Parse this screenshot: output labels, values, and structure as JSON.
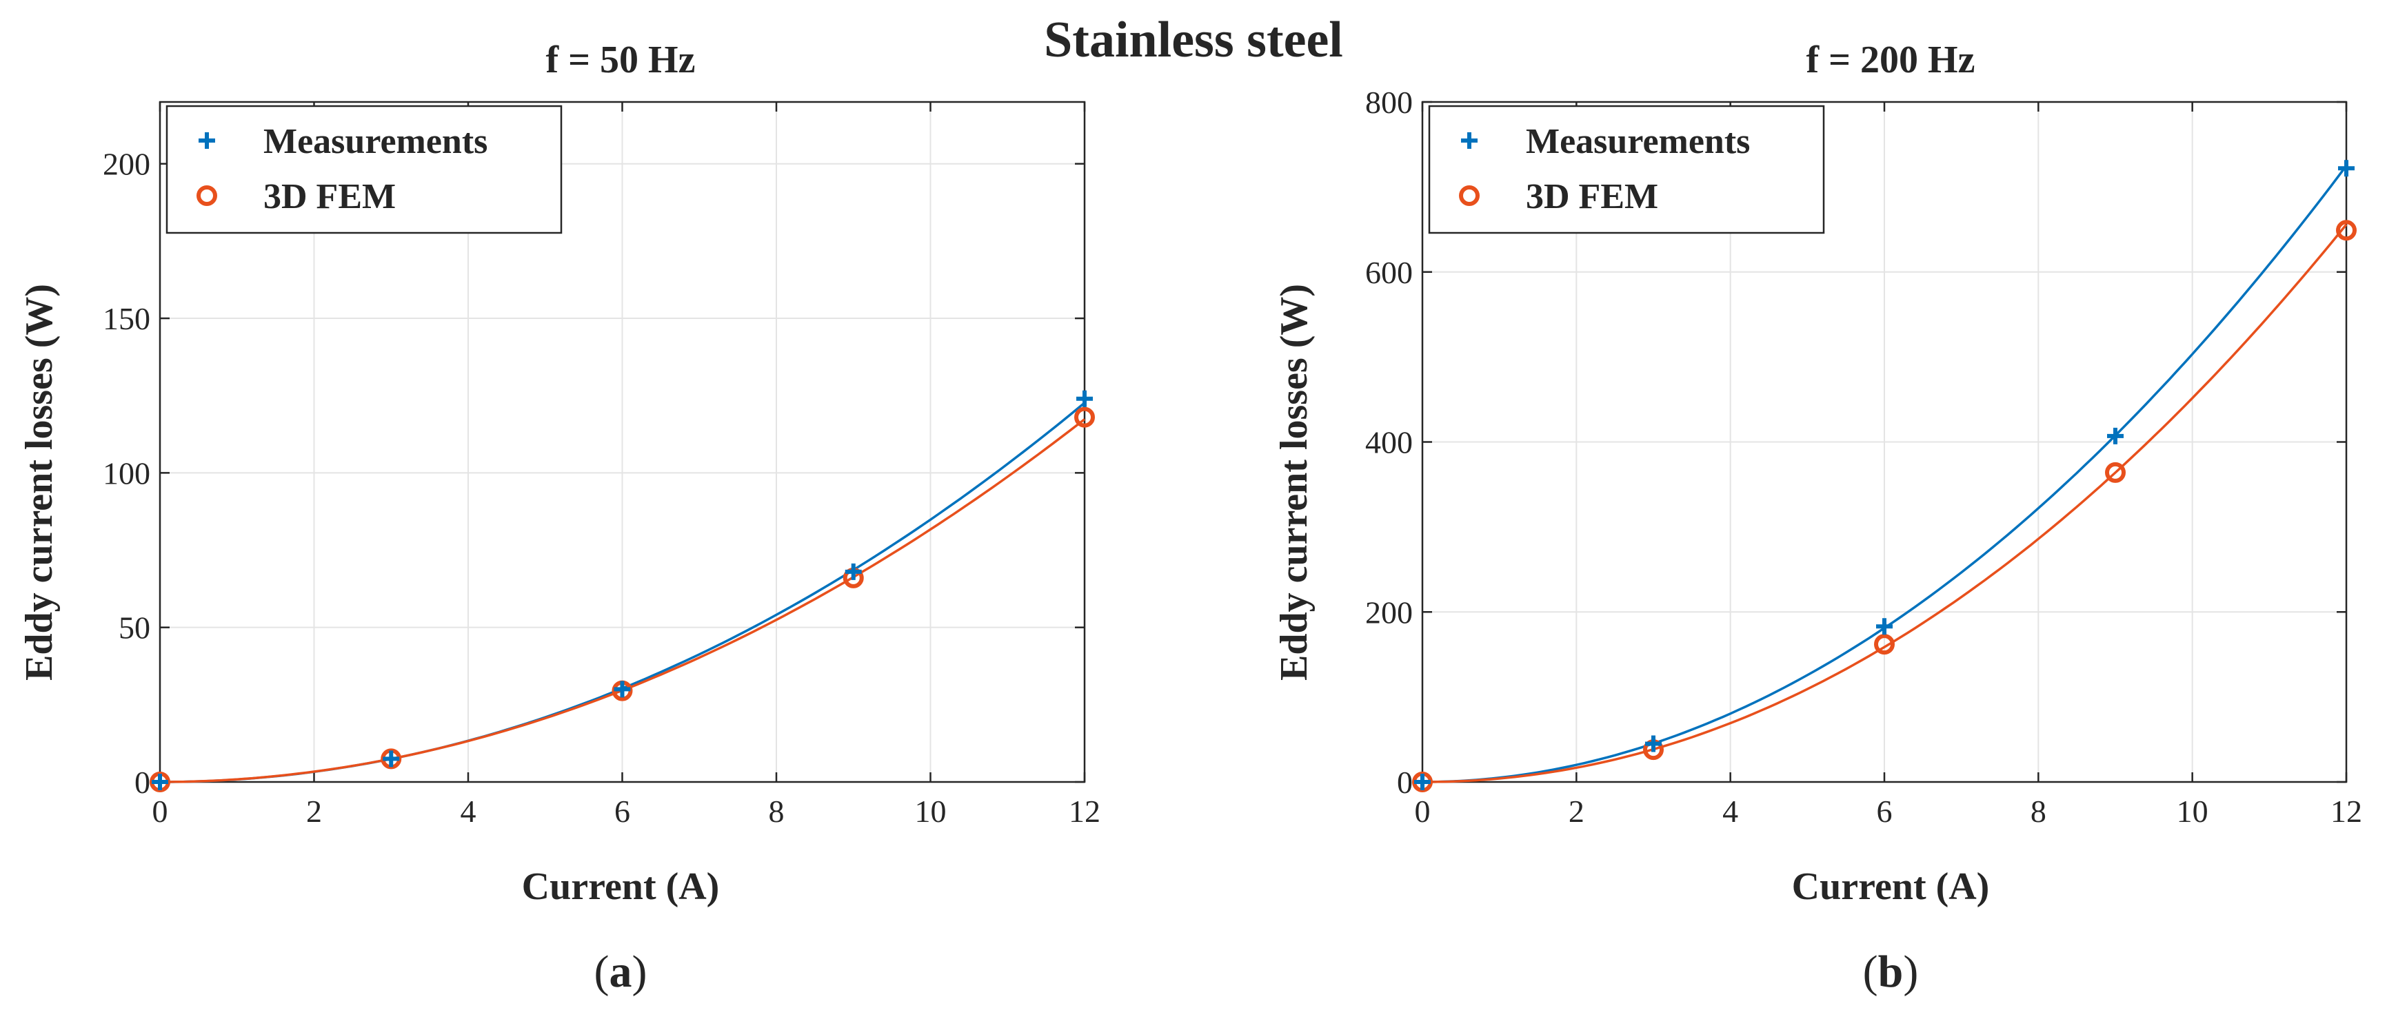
{
  "figure": {
    "suptitle": "Stainless steel"
  },
  "colors": {
    "measurements": "#0072BD",
    "fem": "#E8501C",
    "grid": "#e4e4e4",
    "axis": "#262626"
  },
  "legend": {
    "measurements": "Measurements",
    "fem": "3D FEM",
    "location": "top-left"
  },
  "chart_data": [
    {
      "type": "line",
      "panel": "(a)",
      "panel_letter": "a",
      "title": "f = 50 Hz",
      "xlabel": "Current (A)",
      "ylabel": "Eddy current losses (W)",
      "xlim": [
        0,
        12
      ],
      "ylim": [
        0,
        220
      ],
      "xticks": [
        0,
        2,
        4,
        6,
        8,
        10,
        12
      ],
      "yticks": [
        0,
        50,
        100,
        150,
        200
      ],
      "grid": true,
      "x": [
        0,
        3,
        6,
        9,
        12
      ],
      "series": [
        {
          "name": "Measurements",
          "marker": "plus",
          "values": [
            0,
            7.5,
            30,
            68,
            124
          ]
        },
        {
          "name": "3D FEM",
          "marker": "circle",
          "values": [
            0,
            7.5,
            29.5,
            66,
            118
          ]
        }
      ]
    },
    {
      "type": "line",
      "panel": "(b)",
      "panel_letter": "b",
      "title": "f = 200 Hz",
      "xlabel": "Current (A)",
      "ylabel": "Eddy current losses (W)",
      "xlim": [
        0,
        12
      ],
      "ylim": [
        0,
        800
      ],
      "xticks": [
        0,
        2,
        4,
        6,
        8,
        10,
        12
      ],
      "yticks": [
        0,
        200,
        400,
        600,
        800
      ],
      "grid": true,
      "x": [
        0,
        3,
        6,
        9,
        12
      ],
      "series": [
        {
          "name": "Measurements",
          "marker": "plus",
          "values": [
            0,
            45,
            183,
            407,
            722
          ]
        },
        {
          "name": "3D FEM",
          "marker": "circle",
          "values": [
            0,
            38,
            162,
            364,
            649
          ]
        }
      ]
    }
  ]
}
